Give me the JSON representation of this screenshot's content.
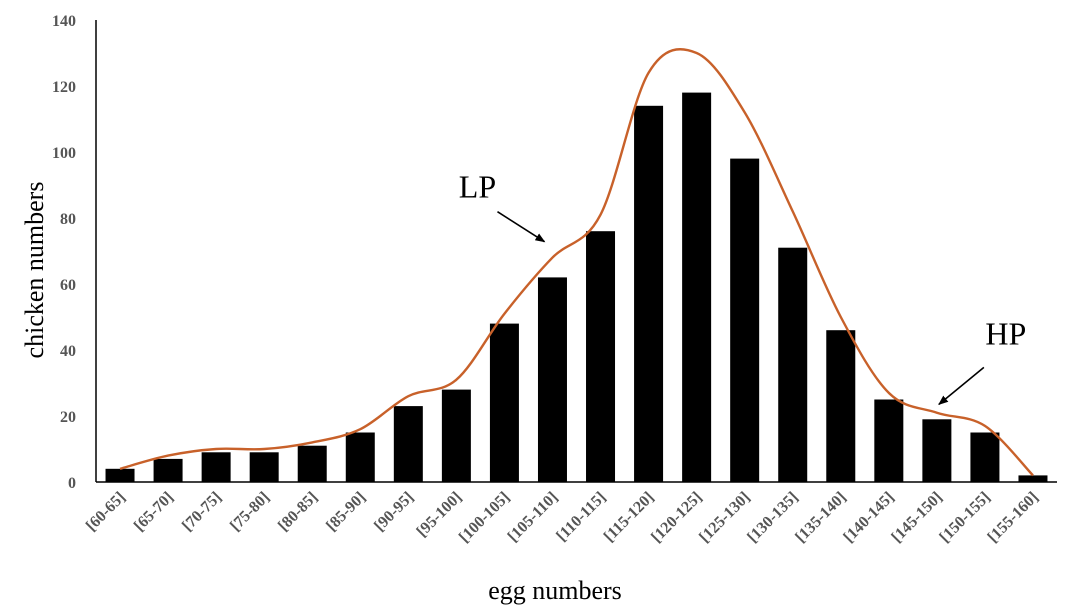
{
  "chart_data": {
    "type": "bar",
    "title": "",
    "xlabel": "egg numbers",
    "ylabel": "chicken numbers",
    "ylim": [
      0,
      140
    ],
    "yticks": [
      0,
      20,
      40,
      60,
      80,
      100,
      120,
      140
    ],
    "grid": false,
    "categories": [
      "[60-65]",
      "[65-70]",
      "[70-75]",
      "[75-80]",
      "[80-85]",
      "[85-90]",
      "[90-95]",
      "[95-100]",
      "[100-105]",
      "[105-110]",
      "[110-115]",
      "[115-120]",
      "[120-125]",
      "[125-130]",
      "[130-135]",
      "[135-140]",
      "[140-145]",
      "[145-150]",
      "[150-155]",
      "[155-160]"
    ],
    "series": [
      {
        "type": "bar",
        "values": [
          4,
          7,
          9,
          9,
          11,
          15,
          23,
          28,
          48,
          62,
          76,
          114,
          118,
          98,
          71,
          46,
          25,
          19,
          15,
          2
        ]
      },
      {
        "type": "line",
        "smooth": true,
        "values": [
          4,
          8,
          10,
          10,
          12,
          16,
          26,
          31,
          51,
          68,
          81,
          124,
          130,
          112,
          82,
          50,
          27,
          21,
          17,
          2
        ]
      }
    ],
    "annotations": [
      {
        "text": "LP",
        "category": "[105-110]",
        "y": 71
      },
      {
        "text": "HP",
        "category": "[145-150]",
        "y": 22
      }
    ],
    "colors": {
      "bars": "#000000",
      "line": "#c8612a",
      "tick_text": "#555555"
    }
  }
}
